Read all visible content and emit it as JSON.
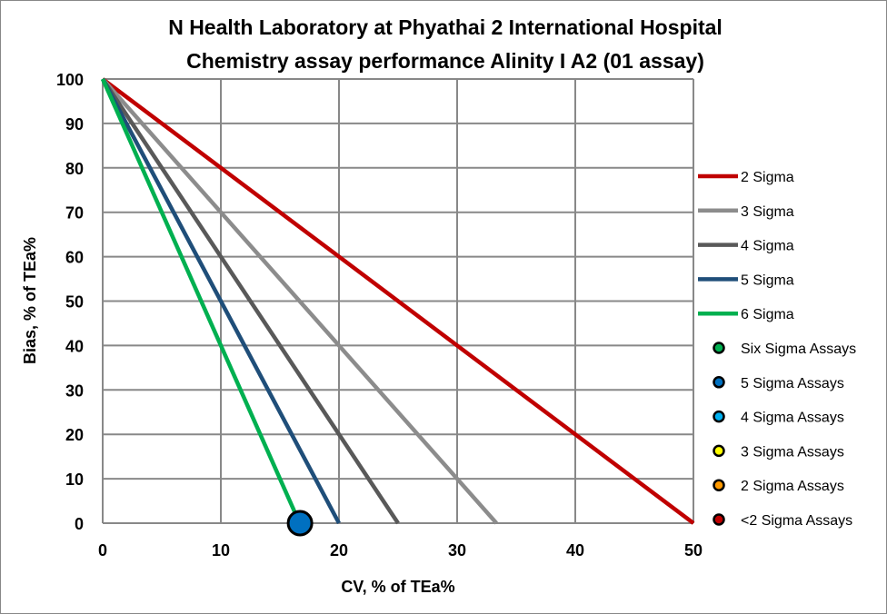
{
  "chart_data": {
    "type": "scatter",
    "title": [
      "N Health Laboratory at Phyathai 2 International Hospital",
      "Chemistry assay performance Alinity I A2 (01 assay)"
    ],
    "xlabel": "CV, % of TEa%",
    "ylabel": "Bias, % of TEa%",
    "xlim": [
      0,
      50
    ],
    "ylim": [
      0,
      100
    ],
    "xticks": [
      0,
      10,
      20,
      30,
      40,
      50
    ],
    "yticks": [
      0,
      10,
      20,
      30,
      40,
      50,
      60,
      70,
      80,
      90,
      100
    ],
    "grid": true,
    "legend_position": "right",
    "lines": [
      {
        "name": "2 Sigma",
        "color": "#C00000",
        "x": [
          0,
          50
        ],
        "y": [
          100,
          0
        ]
      },
      {
        "name": "3 Sigma",
        "color": "#8C8C8C",
        "x": [
          0,
          33.33
        ],
        "y": [
          100,
          0
        ]
      },
      {
        "name": "4 Sigma",
        "color": "#595959",
        "x": [
          0,
          25
        ],
        "y": [
          100,
          0
        ]
      },
      {
        "name": "5 Sigma",
        "color": "#1F4E79",
        "x": [
          0,
          20
        ],
        "y": [
          100,
          0
        ]
      },
      {
        "name": "6 Sigma",
        "color": "#00B050",
        "x": [
          0,
          16.67
        ],
        "y": [
          100,
          0
        ]
      }
    ],
    "point_series": [
      {
        "name": "Six Sigma Assays",
        "color": "#00B050",
        "points": []
      },
      {
        "name": "5 Sigma Assays",
        "color": "#0070C0",
        "points": [
          {
            "x": 16.7,
            "y": 0
          }
        ]
      },
      {
        "name": "4 Sigma Assays",
        "color": "#00B0F0",
        "points": []
      },
      {
        "name": "3 Sigma Assays",
        "color": "#FFFF00",
        "points": []
      },
      {
        "name": "2 Sigma Assays",
        "color": "#FF9900",
        "points": []
      },
      {
        "name": "<2 Sigma Assays",
        "color": "#C00000",
        "points": []
      }
    ]
  }
}
